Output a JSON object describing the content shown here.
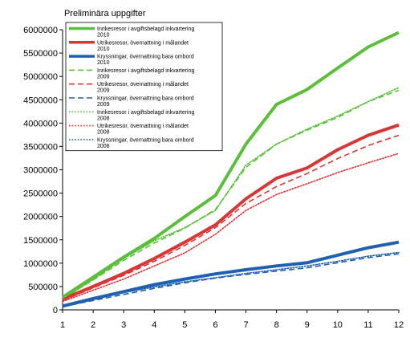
{
  "chart_data": {
    "type": "line",
    "subtitle": "Preliminära uppgifter",
    "x": [
      1,
      2,
      3,
      4,
      5,
      6,
      7,
      8,
      9,
      10,
      11,
      12
    ],
    "xlim": [
      1,
      12
    ],
    "ylim": [
      0,
      6000000
    ],
    "y_ticks": [
      0,
      500000,
      1000000,
      1500000,
      2000000,
      2500000,
      3000000,
      3500000,
      4000000,
      4500000,
      5000000,
      5500000,
      6000000
    ],
    "grid": false,
    "legend_position": "top-left",
    "series": [
      {
        "name": "Inrikesresor i avgiftsbelagd inkvartering 2010",
        "color": "#5bbf3a",
        "dash": "solid",
        "width": 4,
        "values": [
          270000,
          700000,
          1130000,
          1530000,
          2000000,
          2450000,
          3550000,
          4400000,
          4720000,
          5180000,
          5630000,
          5940000
        ]
      },
      {
        "name": "Utrikesresor, övernattning i målandet 2010",
        "color": "#d93636",
        "dash": "solid",
        "width": 4,
        "values": [
          230000,
          500000,
          780000,
          1100000,
          1450000,
          1820000,
          2380000,
          2820000,
          3040000,
          3430000,
          3740000,
          3960000
        ]
      },
      {
        "name": "Kryssningar, övernattning bara ombord 2010",
        "color": "#2060b0",
        "dash": "solid",
        "width": 4,
        "values": [
          80000,
          240000,
          390000,
          540000,
          660000,
          770000,
          860000,
          940000,
          1010000,
          1170000,
          1330000,
          1450000
        ]
      },
      {
        "name": "Inrikesresor i avgiftsbelagd inkvartering 2009",
        "color": "#5bbf3a",
        "dash": "long",
        "width": 1.6,
        "values": [
          240000,
          640000,
          1060000,
          1430000,
          1750000,
          2150000,
          3050000,
          3550000,
          3850000,
          4120000,
          4460000,
          4700000
        ]
      },
      {
        "name": "Utrikesresor, övernattning i målandet 2009",
        "color": "#d93636",
        "dash": "long",
        "width": 1.6,
        "values": [
          200000,
          470000,
          740000,
          1040000,
          1380000,
          1760000,
          2280000,
          2640000,
          2920000,
          3240000,
          3520000,
          3740000
        ]
      },
      {
        "name": "Kryssningar, övernattning bara ombord 2009",
        "color": "#2060b0",
        "dash": "long",
        "width": 1.6,
        "values": [
          70000,
          200000,
          330000,
          460000,
          580000,
          680000,
          760000,
          830000,
          900000,
          1010000,
          1120000,
          1200000
        ]
      },
      {
        "name": "Inrikesresor i avgiftsbelagd inkvartering 2008",
        "color": "#5bbf3a",
        "dash": "dot",
        "width": 1.6,
        "values": [
          230000,
          650000,
          1100000,
          1480000,
          1760000,
          2130000,
          3100000,
          3550000,
          3870000,
          4150000,
          4460000,
          4760000
        ]
      },
      {
        "name": "Utrikesresor, övernattning i målandet 2008",
        "color": "#d93636",
        "dash": "dot",
        "width": 1.6,
        "values": [
          180000,
          420000,
          660000,
          940000,
          1220000,
          1620000,
          2130000,
          2470000,
          2700000,
          2940000,
          3150000,
          3350000
        ]
      },
      {
        "name": "Kryssningar, övernattning bara ombord 2008",
        "color": "#2060b0",
        "dash": "dot",
        "width": 1.6,
        "values": [
          60000,
          220000,
          370000,
          490000,
          600000,
          690000,
          780000,
          860000,
          940000,
          1040000,
          1150000,
          1230000
        ]
      }
    ]
  }
}
